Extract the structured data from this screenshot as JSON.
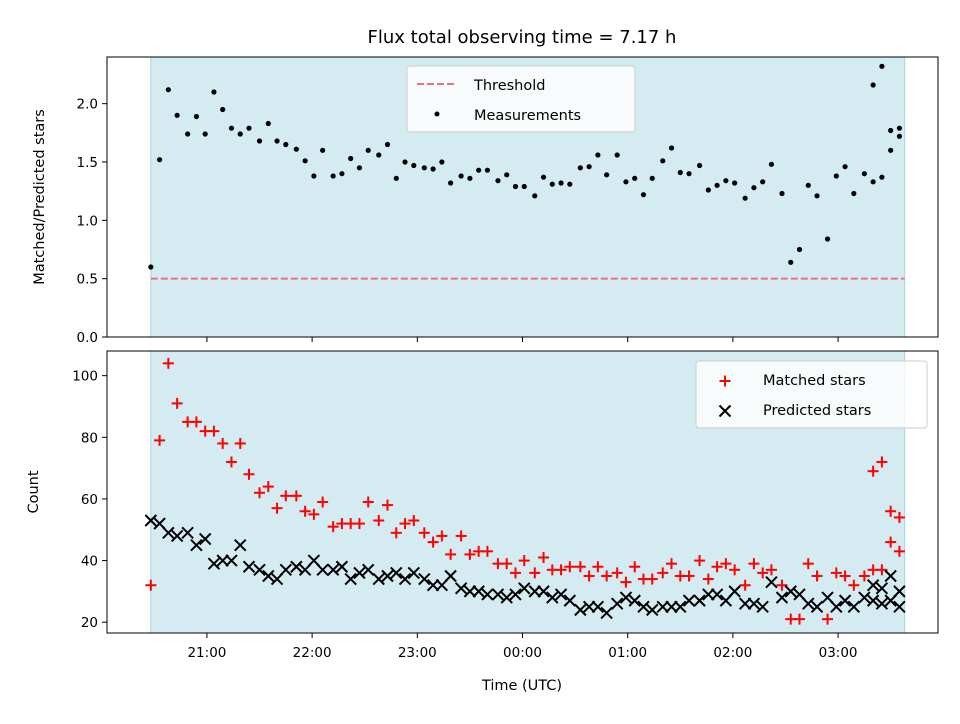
{
  "colors": {
    "band": "#d4ebf1",
    "band_edge": "#a9d3e0",
    "matched": "#ff0000",
    "predicted": "#000000",
    "measurement": "#000000",
    "threshold": "#e8737b"
  },
  "chart_data": [
    {
      "type": "scatter",
      "title": "Flux total observing time = 7.17 h",
      "xlabel": "",
      "ylabel": "Matched/Predicted stars",
      "ylim": [
        0,
        2.4
      ],
      "yticks": [
        0.0,
        0.5,
        1.0,
        1.5,
        2.0
      ],
      "yticklabels": [
        "0.0",
        "0.5",
        "1.0",
        "1.5",
        "2.0"
      ],
      "xlim_hours_since_midnight": [
        -3.95,
        3.95
      ],
      "grid": false,
      "legend": {
        "placement": "upper center",
        "entries": [
          "Threshold",
          "Measurements"
        ]
      },
      "shaded_span": {
        "start": "20:28",
        "end": "03:38"
      },
      "threshold": {
        "name": "Threshold",
        "value": 0.5,
        "style": "dashed"
      },
      "series": [
        {
          "name": "Measurements",
          "marker": "dot",
          "x": [
            "20:28",
            "20:33",
            "20:38",
            "20:43",
            "20:49",
            "20:54",
            "20:59",
            "21:04",
            "21:09",
            "21:14",
            "21:19",
            "21:24",
            "21:30",
            "21:35",
            "21:40",
            "21:45",
            "21:51",
            "21:56",
            "22:01",
            "22:06",
            "22:12",
            "22:17",
            "22:22",
            "22:27",
            "22:32",
            "22:38",
            "22:43",
            "22:48",
            "22:53",
            "22:58",
            "23:04",
            "23:09",
            "23:14",
            "23:19",
            "23:25",
            "23:30",
            "23:35",
            "23:40",
            "23:46",
            "23:51",
            "23:56",
            "00:01",
            "00:07",
            "00:12",
            "00:17",
            "00:22",
            "00:27",
            "00:33",
            "00:38",
            "00:43",
            "00:48",
            "00:54",
            "00:59",
            "01:04",
            "01:09",
            "01:14",
            "01:20",
            "01:25",
            "01:30",
            "01:35",
            "01:41",
            "01:46",
            "01:51",
            "01:56",
            "02:01",
            "02:07",
            "02:12",
            "02:17",
            "02:22",
            "02:28",
            "02:33",
            "02:38",
            "02:43",
            "02:48",
            "02:54",
            "02:59",
            "03:04",
            "03:09",
            "03:15",
            "03:20",
            "03:25",
            "03:30",
            "03:35"
          ],
          "y": [
            0.6,
            1.52,
            2.12,
            1.9,
            1.74,
            1.89,
            1.74,
            2.1,
            1.95,
            1.79,
            1.74,
            1.79,
            1.68,
            1.83,
            1.68,
            1.65,
            1.61,
            1.51,
            1.38,
            1.6,
            1.38,
            1.4,
            1.53,
            1.45,
            1.6,
            1.56,
            1.65,
            1.36,
            1.5,
            1.47,
            1.45,
            1.44,
            1.5,
            1.32,
            1.38,
            1.36,
            1.43,
            1.43,
            1.34,
            1.39,
            1.29,
            1.29,
            1.21,
            1.37,
            1.31,
            1.32,
            1.31,
            1.45,
            1.46,
            1.56,
            1.39,
            1.56,
            1.33,
            1.36,
            1.22,
            1.36,
            1.51,
            1.62,
            1.41,
            1.4,
            1.47,
            1.26,
            1.3,
            1.34,
            1.32,
            1.19,
            1.28,
            1.33,
            1.48,
            1.23,
            0.64,
            0.75,
            1.3,
            1.21,
            0.84,
            1.38,
            1.46,
            1.23,
            1.4,
            1.33,
            1.37,
            1.77,
            1.79
          ]
        },
        {
          "name": "",
          "marker": "dot",
          "x": [
            "03:20",
            "03:25",
            "03:30",
            "03:35"
          ],
          "y": [
            2.16,
            2.32,
            1.6,
            1.72
          ]
        }
      ]
    },
    {
      "type": "scatter",
      "title": "",
      "xlabel": "Time (UTC)",
      "ylabel": "Count",
      "ylim": [
        16.5,
        108
      ],
      "yticks": [
        20,
        40,
        60,
        80,
        100
      ],
      "yticklabels": [
        "20",
        "40",
        "60",
        "80",
        "100"
      ],
      "xticks": [
        "21:00",
        "22:00",
        "23:00",
        "00:00",
        "01:00",
        "02:00",
        "03:00"
      ],
      "grid": false,
      "legend": {
        "placement": "upper right",
        "entries": [
          "Matched stars",
          "Predicted stars"
        ]
      },
      "shaded_span": {
        "start": "20:28",
        "end": "03:38"
      },
      "series": [
        {
          "name": "Matched stars",
          "marker": "plus",
          "x": [
            "20:28",
            "20:33",
            "20:38",
            "20:43",
            "20:49",
            "20:54",
            "20:59",
            "21:04",
            "21:09",
            "21:14",
            "21:19",
            "21:24",
            "21:30",
            "21:35",
            "21:40",
            "21:45",
            "21:51",
            "21:56",
            "22:01",
            "22:06",
            "22:12",
            "22:17",
            "22:22",
            "22:27",
            "22:32",
            "22:38",
            "22:43",
            "22:48",
            "22:53",
            "22:58",
            "23:04",
            "23:09",
            "23:14",
            "23:19",
            "23:25",
            "23:30",
            "23:35",
            "23:40",
            "23:46",
            "23:51",
            "23:56",
            "00:01",
            "00:07",
            "00:12",
            "00:17",
            "00:22",
            "00:27",
            "00:33",
            "00:38",
            "00:43",
            "00:48",
            "00:54",
            "00:59",
            "01:04",
            "01:09",
            "01:14",
            "01:20",
            "01:25",
            "01:30",
            "01:35",
            "01:41",
            "01:46",
            "01:51",
            "01:56",
            "02:01",
            "02:07",
            "02:12",
            "02:17",
            "02:22",
            "02:28",
            "02:33",
            "02:38",
            "02:43",
            "02:48",
            "02:54",
            "02:59",
            "03:04",
            "03:09",
            "03:15",
            "03:20",
            "03:25",
            "03:30",
            "03:35"
          ],
          "y": [
            32,
            79,
            104,
            91,
            85,
            85,
            82,
            82,
            78,
            72,
            78,
            68,
            62,
            64,
            57,
            61,
            61,
            56,
            55,
            59,
            51,
            52,
            52,
            52,
            59,
            53,
            58,
            49,
            52,
            53,
            49,
            46,
            48,
            42,
            48,
            42,
            43,
            43,
            39,
            39,
            36,
            40,
            36,
            41,
            37,
            37,
            38,
            38,
            35,
            38,
            35,
            36,
            33,
            38,
            34,
            34,
            36,
            39,
            35,
            35,
            40,
            34,
            38,
            39,
            37,
            32,
            39,
            36,
            37,
            32,
            21,
            21,
            39,
            35,
            21,
            36,
            35,
            32,
            35,
            37,
            37,
            46,
            54
          ]
        },
        {
          "name": "",
          "marker": "plus",
          "x": [
            "03:20",
            "03:25",
            "03:30",
            "03:35"
          ],
          "y": [
            69,
            72,
            56,
            43
          ]
        },
        {
          "name": "Predicted stars",
          "marker": "x",
          "x": [
            "20:28",
            "20:33",
            "20:38",
            "20:43",
            "20:49",
            "20:54",
            "20:59",
            "21:04",
            "21:09",
            "21:14",
            "21:19",
            "21:24",
            "21:30",
            "21:35",
            "21:40",
            "21:45",
            "21:51",
            "21:56",
            "22:01",
            "22:06",
            "22:12",
            "22:17",
            "22:22",
            "22:27",
            "22:32",
            "22:38",
            "22:43",
            "22:48",
            "22:53",
            "22:58",
            "23:04",
            "23:09",
            "23:14",
            "23:19",
            "23:25",
            "23:30",
            "23:35",
            "23:40",
            "23:46",
            "23:51",
            "23:56",
            "00:01",
            "00:07",
            "00:12",
            "00:17",
            "00:22",
            "00:27",
            "00:33",
            "00:38",
            "00:43",
            "00:48",
            "00:54",
            "00:59",
            "01:04",
            "01:09",
            "01:14",
            "01:20",
            "01:25",
            "01:30",
            "01:35",
            "01:41",
            "01:46",
            "01:51",
            "01:56",
            "02:01",
            "02:07",
            "02:12",
            "02:17",
            "02:22",
            "02:28",
            "02:33",
            "02:38",
            "02:43",
            "02:48",
            "02:54",
            "02:59",
            "03:04",
            "03:09",
            "03:15",
            "03:20",
            "03:25",
            "03:30",
            "03:35"
          ],
          "y": [
            53,
            52,
            49,
            48,
            49,
            45,
            47,
            39,
            40,
            40,
            45,
            38,
            37,
            35,
            34,
            37,
            38,
            37,
            40,
            37,
            37,
            38,
            34,
            36,
            37,
            34,
            35,
            36,
            34,
            36,
            34,
            32,
            32,
            35,
            31,
            30,
            30,
            29,
            29,
            28,
            29,
            31,
            30,
            30,
            28,
            29,
            27,
            24,
            25,
            25,
            23,
            26,
            28,
            27,
            25,
            24,
            25,
            25,
            25,
            27,
            27,
            29,
            29,
            27,
            30,
            26,
            26,
            25,
            33,
            28,
            30,
            29,
            26,
            25,
            28,
            25,
            27,
            25,
            28,
            27,
            26,
            27,
            30
          ]
        },
        {
          "name": "",
          "marker": "x",
          "x": [
            "03:20",
            "03:25",
            "03:30",
            "03:35"
          ],
          "y": [
            32,
            31,
            35,
            25
          ]
        }
      ]
    }
  ]
}
